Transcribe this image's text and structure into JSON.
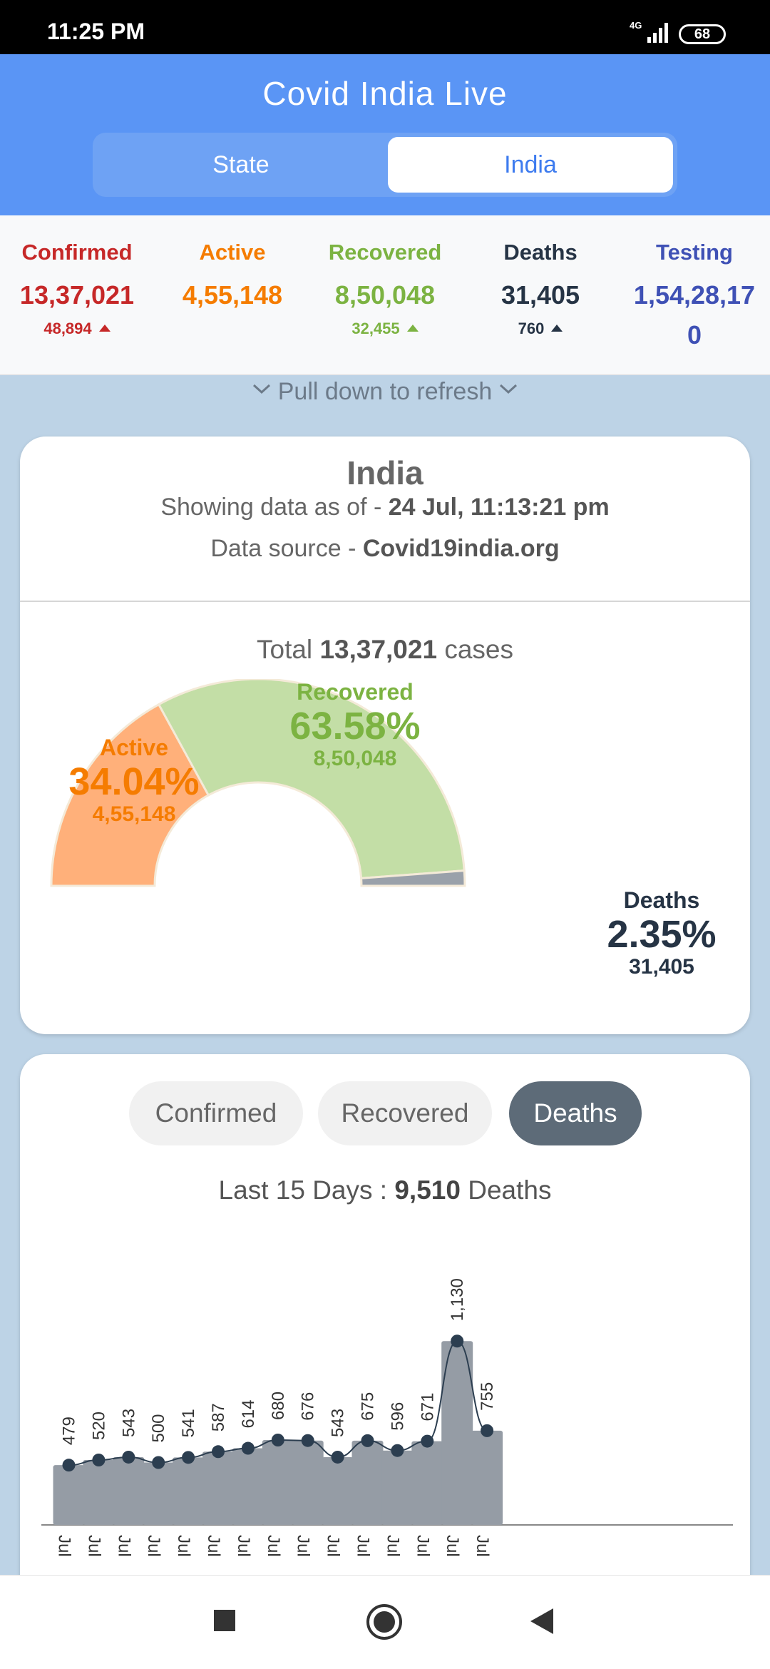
{
  "status_bar": {
    "time": "11:25 PM",
    "network": "4G",
    "battery": "68"
  },
  "app": {
    "title": "Covid India Live"
  },
  "toggle": {
    "state_label": "State",
    "india_label": "India",
    "selected": "India"
  },
  "summary": {
    "confirmed": {
      "label": "Confirmed",
      "value": "13,37,021",
      "delta": "48,894",
      "color": "#c62828"
    },
    "active": {
      "label": "Active",
      "value": "4,55,148",
      "color": "#f57c00"
    },
    "recovered": {
      "label": "Recovered",
      "value": "8,50,048",
      "delta": "32,455",
      "color": "#7cb342"
    },
    "deaths": {
      "label": "Deaths",
      "value": "31,405",
      "delta": "760",
      "color": "#263445"
    },
    "testing": {
      "label": "Testing",
      "value_line1": "1,54,28,17",
      "value_line2": "0",
      "color": "#3f51b5"
    }
  },
  "refresh_hint": "Pull down to refresh",
  "overview_card": {
    "title": "India",
    "as_of_prefix": "Showing data as of - ",
    "as_of_value": "24 Jul, 11:13:21 pm",
    "source_prefix": "Data source - ",
    "source_value": "Covid19india.org",
    "total_prefix": "Total ",
    "total_value": "13,37,021",
    "total_suffix": " cases"
  },
  "gauge": {
    "active": {
      "label": "Active",
      "percent": "34.04%",
      "value": "4,55,148",
      "fraction": 0.3404,
      "color": "#ffb07a"
    },
    "recovered": {
      "label": "Recovered",
      "percent": "63.58%",
      "value": "8,50,048",
      "fraction": 0.6358,
      "color": "#c3dea6"
    },
    "deaths": {
      "label": "Deaths",
      "percent": "2.35%",
      "value": "31,405",
      "fraction": 0.0235,
      "color": "#9aa1aa"
    }
  },
  "trend_card": {
    "tabs": [
      "Confirmed",
      "Recovered",
      "Deaths"
    ],
    "selected_tab": "Deaths",
    "summary_prefix": "Last 15 Days : ",
    "summary_value": "9,510",
    "summary_suffix": " Deaths"
  },
  "chart_data": {
    "type": "bar",
    "categories": [
      "Jul",
      "Jul",
      "Jul",
      "Jul",
      "Jul",
      "Jul",
      "Jul",
      "Jul",
      "Jul",
      "Jul",
      "Jul",
      "Jul",
      "Jul",
      "Jul",
      "Jul"
    ],
    "values": [
      479,
      520,
      543,
      500,
      541,
      587,
      614,
      680,
      676,
      543,
      675,
      596,
      671,
      1130,
      755
    ],
    "value_labels": [
      "479",
      "520",
      "543",
      "500",
      "541",
      "587",
      "614",
      "680",
      "676",
      "543",
      "675",
      "596",
      "671",
      "1,130",
      "755"
    ],
    "overlay": "line",
    "ylim": [
      0,
      1200
    ],
    "bar_color": "#959ca5",
    "line_color": "#2c3e50"
  }
}
